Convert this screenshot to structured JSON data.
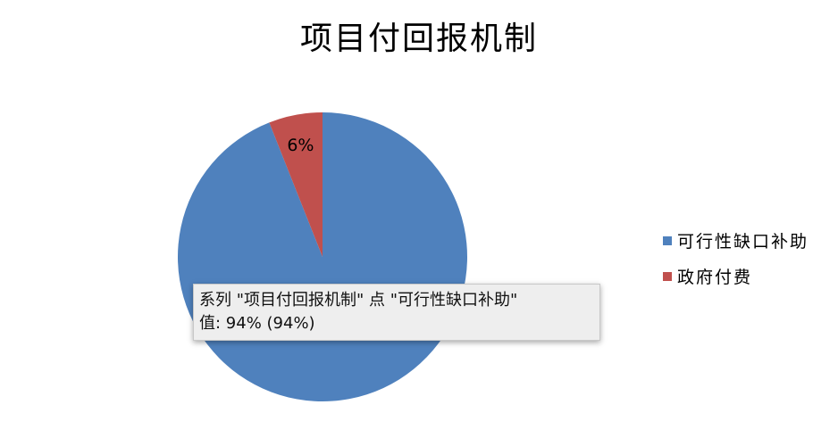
{
  "chart_data": {
    "type": "pie",
    "title": "项目付回报机制",
    "categories": [
      "可行性缺口补助",
      "政府付费"
    ],
    "values": [
      94,
      6
    ],
    "colors": [
      "#4f81bd",
      "#c0504d"
    ],
    "data_labels": [
      "",
      "6%"
    ],
    "legend_position": "right"
  },
  "tooltip": {
    "line1": "系列 \"项目付回报机制\" 点 \"可行性缺口补助\"",
    "line2": "值: 94% (94%)"
  }
}
